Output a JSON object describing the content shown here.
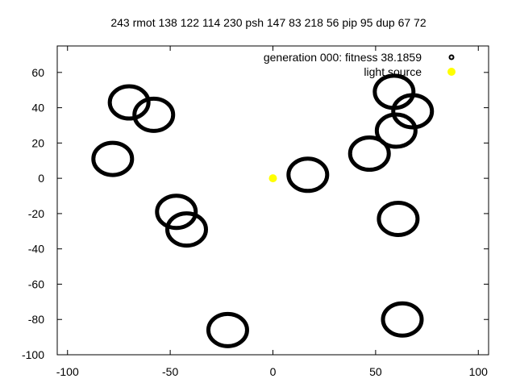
{
  "chart_data": {
    "type": "scatter",
    "title": "243 rmot 138 122 114 230 psh 147 83 218 56 pip 95 dup 67 72",
    "xlabel": "",
    "ylabel": "",
    "xlim": [
      -105,
      105
    ],
    "ylim": [
      -100,
      75
    ],
    "xticks": [
      -100,
      -50,
      0,
      50,
      100
    ],
    "yticks": [
      -100,
      -80,
      -60,
      -40,
      -20,
      0,
      20,
      40,
      60
    ],
    "grid": false,
    "legend_position": "top-right",
    "series": [
      {
        "name": "generation 000: fitness 38.1859",
        "marker": "ring",
        "color": "#000000",
        "points": [
          {
            "x": -70,
            "y": 43
          },
          {
            "x": -58,
            "y": 36
          },
          {
            "x": -78,
            "y": 11
          },
          {
            "x": -47,
            "y": -19
          },
          {
            "x": -42,
            "y": -29
          },
          {
            "x": -22,
            "y": -86
          },
          {
            "x": 17,
            "y": 2
          },
          {
            "x": 47,
            "y": 14
          },
          {
            "x": 59,
            "y": 49
          },
          {
            "x": 68,
            "y": 38
          },
          {
            "x": 60,
            "y": 27
          },
          {
            "x": 61,
            "y": -23
          },
          {
            "x": 63,
            "y": -80
          }
        ]
      },
      {
        "name": "light source",
        "marker": "dot",
        "color": "#ffff00",
        "points": [
          {
            "x": 0,
            "y": 0
          }
        ]
      }
    ]
  }
}
